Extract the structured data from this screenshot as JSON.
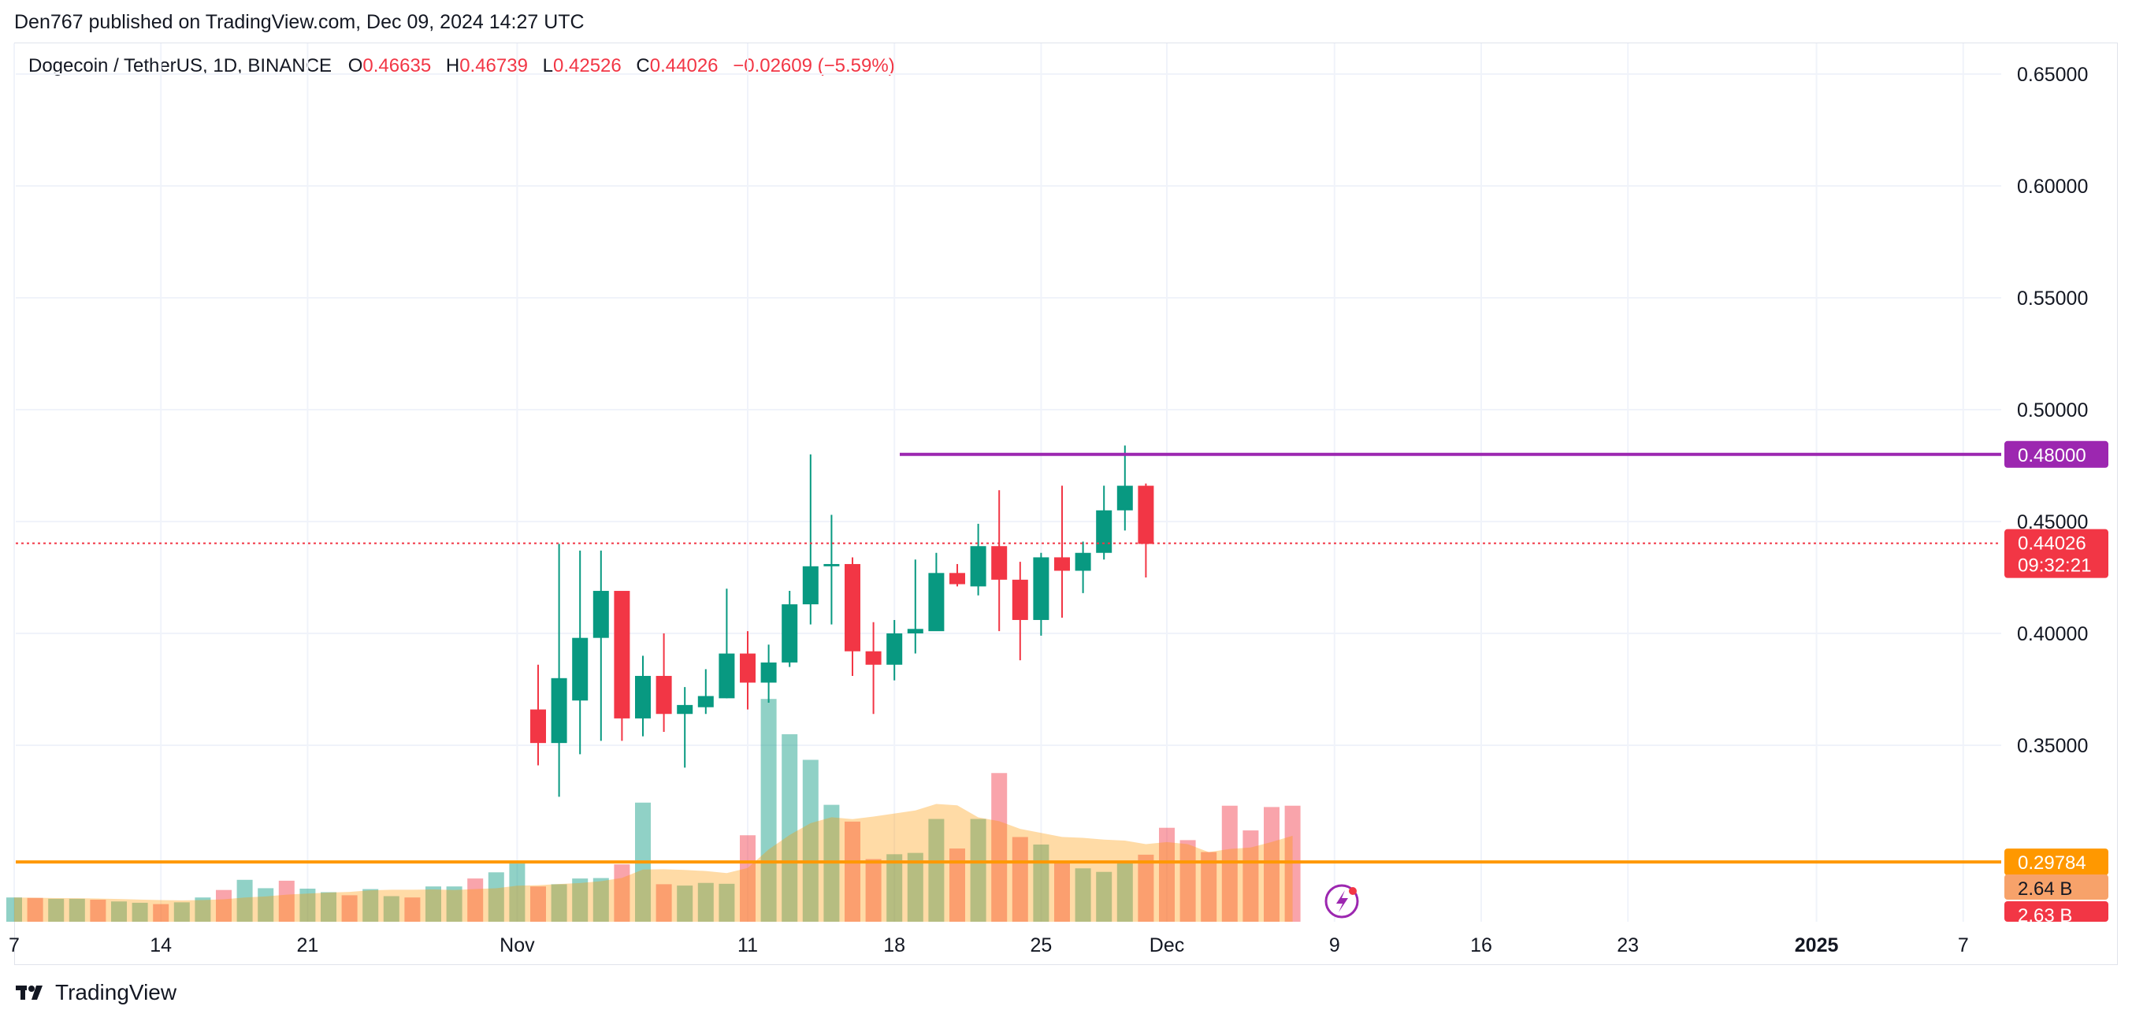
{
  "header": {
    "published_by": "Den767 published on TradingView.com, Dec 09, 2024 14:27 UTC"
  },
  "legend": {
    "symbol": "Dogecoin / TetherUS, 1D, BINANCE",
    "o_label": "O",
    "o_value": "0.46635",
    "h_label": "H",
    "h_value": "0.46739",
    "l_label": "L",
    "l_value": "0.42526",
    "c_label": "C",
    "c_value": "0.44026",
    "change": "−0.02609 (−5.59%)"
  },
  "footer": {
    "brand": "TradingView"
  },
  "colors": {
    "up": "#089981",
    "down": "#f23645",
    "resistance": "#9c27b0",
    "support": "#ff9800",
    "grid": "#f0f3fa"
  },
  "chart_data": {
    "type": "candlestick",
    "y_axis": {
      "ticks": [
        "0.65000",
        "0.60000",
        "0.55000",
        "0.50000",
        "0.45000",
        "0.40000",
        "0.35000"
      ],
      "range": [
        0.29,
        0.66
      ],
      "position": "right"
    },
    "x_axis": {
      "ticks": [
        "7",
        "14",
        "21",
        "Nov",
        "11",
        "18",
        "25",
        "Dec",
        "9",
        "16",
        "23",
        "2025",
        "7"
      ]
    },
    "price_labels": {
      "resistance": "0.48000",
      "last": "0.44026",
      "countdown": "09:32:21",
      "support": "0.29784",
      "vol_ma": "2.64 B",
      "vol": "2.63 B"
    },
    "levels": {
      "resistance": 0.48,
      "support": 0.29784,
      "last": 0.44026
    },
    "candles": [
      [
        0.366,
        0.386,
        0.341,
        0.351
      ],
      [
        0.351,
        0.44,
        0.327,
        0.38
      ],
      [
        0.37,
        0.437,
        0.346,
        0.398
      ],
      [
        0.398,
        0.437,
        0.352,
        0.419
      ],
      [
        0.419,
        0.417,
        0.352,
        0.362
      ],
      [
        0.362,
        0.39,
        0.354,
        0.381
      ],
      [
        0.381,
        0.4,
        0.356,
        0.364
      ],
      [
        0.364,
        0.376,
        0.34,
        0.368
      ],
      [
        0.367,
        0.384,
        0.364,
        0.372
      ],
      [
        0.371,
        0.42,
        0.371,
        0.391
      ],
      [
        0.391,
        0.401,
        0.366,
        0.378
      ],
      [
        0.378,
        0.395,
        0.369,
        0.387
      ],
      [
        0.387,
        0.419,
        0.385,
        0.413
      ],
      [
        0.413,
        0.48,
        0.404,
        0.43
      ],
      [
        0.43,
        0.453,
        0.404,
        0.431
      ],
      [
        0.431,
        0.434,
        0.381,
        0.392
      ],
      [
        0.392,
        0.405,
        0.364,
        0.386
      ],
      [
        0.386,
        0.406,
        0.379,
        0.4
      ],
      [
        0.4,
        0.433,
        0.391,
        0.402
      ],
      [
        0.401,
        0.436,
        0.402,
        0.427
      ],
      [
        0.427,
        0.431,
        0.421,
        0.422
      ],
      [
        0.421,
        0.449,
        0.417,
        0.439
      ],
      [
        0.439,
        0.464,
        0.401,
        0.424
      ],
      [
        0.424,
        0.432,
        0.388,
        0.406
      ],
      [
        0.406,
        0.436,
        0.399,
        0.434
      ],
      [
        0.434,
        0.466,
        0.407,
        0.428
      ],
      [
        0.428,
        0.441,
        0.418,
        0.436
      ],
      [
        0.436,
        0.466,
        0.433,
        0.455
      ],
      [
        0.455,
        0.484,
        0.446,
        0.466
      ],
      [
        0.466,
        0.467,
        0.425,
        0.44
      ]
    ],
    "volumes_billion": [
      0.55,
      0.54,
      0.52,
      0.52,
      0.5,
      0.46,
      0.43,
      0.4,
      0.44,
      0.55,
      0.72,
      0.95,
      0.76,
      0.93,
      0.75,
      0.67,
      0.6,
      0.74,
      0.58,
      0.55,
      0.8,
      0.8,
      0.98,
      1.12,
      1.32,
      0.8,
      0.85,
      0.98,
      0.99,
      1.3,
      2.7,
      0.85,
      0.82,
      0.88,
      0.86,
      1.96,
      5.05,
      4.25,
      3.67,
      2.65,
      2.27,
      1.42,
      1.53,
      1.56,
      2.33,
      1.66,
      2.33,
      3.37,
      1.92,
      1.75,
      1.35,
      1.21,
      1.13,
      1.35,
      1.52,
      2.13,
      1.85,
      1.58,
      2.63,
      2.07,
      2.6,
      2.63
    ]
  }
}
